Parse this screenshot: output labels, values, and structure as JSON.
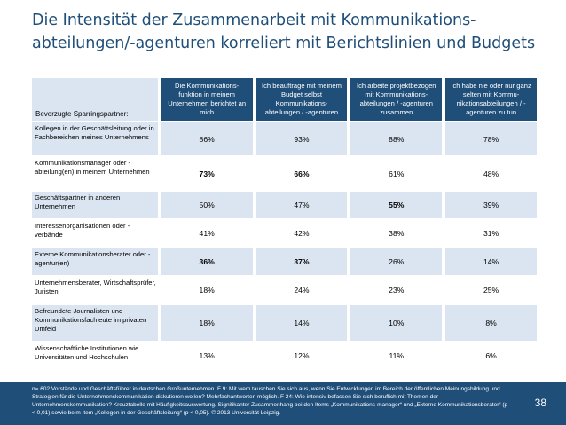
{
  "title_lines": [
    "Die Intensität der Zusammenarbeit mit Kommunikations-",
    "abteilungen/-agenturen korreliert mit Berichtslinien und Budgets"
  ],
  "chart_data": {
    "type": "table",
    "row_header": "Bevorzugte Sparringspartner:",
    "columns": [
      "Die Kommunikations-funktion in meinem Unternehmen berichtet an mich",
      "Ich beauftrage mit meinem Budget selbst Kommunikations-abteilungen / -agenturen",
      "Ich arbeite projektbezogen mit Kommunikations-abteilungen / -agenturen zusammen",
      "Ich habe nie oder nur ganz selten mit Kommu-nikationsabteilungen / -agenturen zu tun"
    ],
    "rows": [
      {
        "label": "Kollegen in der Geschäftsleitung oder in Fachbereichen meines Unternehmens",
        "values": [
          "86%",
          "93%",
          "88%",
          "78%"
        ],
        "bold": [
          false,
          false,
          false,
          false
        ]
      },
      {
        "label": "Kommunikationsmanager oder -abteilung(en) in meinem Unternehmen",
        "values": [
          "73%",
          "66%",
          "61%",
          "48%"
        ],
        "bold": [
          true,
          true,
          false,
          false
        ]
      },
      {
        "label": "Geschäftspartner in anderen Unternehmen",
        "values": [
          "50%",
          "47%",
          "55%",
          "39%"
        ],
        "bold": [
          false,
          false,
          true,
          false
        ]
      },
      {
        "label": "Interessenorganisationen oder -verbände",
        "values": [
          "41%",
          "42%",
          "38%",
          "31%"
        ],
        "bold": [
          false,
          false,
          false,
          false
        ]
      },
      {
        "label": "Externe Kommunikationsberater oder -agentur(en)",
        "values": [
          "36%",
          "37%",
          "26%",
          "14%"
        ],
        "bold": [
          true,
          true,
          false,
          false
        ]
      },
      {
        "label": "Unternehmensberater, Wirtschaftsprüfer, Juristen",
        "values": [
          "18%",
          "24%",
          "23%",
          "25%"
        ],
        "bold": [
          false,
          false,
          false,
          false
        ]
      },
      {
        "label": "Befreundete Journalisten und Kommunikationsfachleute im privaten Umfeld",
        "values": [
          "18%",
          "14%",
          "10%",
          "8%"
        ],
        "bold": [
          false,
          false,
          false,
          false
        ]
      },
      {
        "label": "Wissenschaftliche Institutionen wie Universitäten und Hochschulen",
        "values": [
          "13%",
          "12%",
          "11%",
          "6%"
        ],
        "bold": [
          false,
          false,
          false,
          false
        ]
      }
    ]
  },
  "footer": {
    "note": "n= 602 Vorstände und Geschäftsführer in deutschen Großunternehmen. F 9: Mit wem tauschen Sie sich aus, wenn Sie Entwicklungen im Bereich der öffentlichen Meinungsbildung und Strategien für die Unternehmenskommunikation diskutieren wollen? Mehrfachantworten möglich. F 24: Wie intensiv befassen Sie sich beruflich mit Themen der Unternehmenskommunikation? Kreuztabelle mit Häufigkeitsauswertung. Signifikanter Zusammenhang bei den Items „Kommunikations-manager“ und „Externe Kommunikationsberater“ (p < 0,01) sowie beim Item „Kollegen in der Geschäftsleitung“ (p < 0,05). © 2013 Universität Leipzig.",
    "page": "38"
  },
  "colors": {
    "header_bg": "#1f4e79",
    "shade_bg": "#dbe5f1"
  }
}
